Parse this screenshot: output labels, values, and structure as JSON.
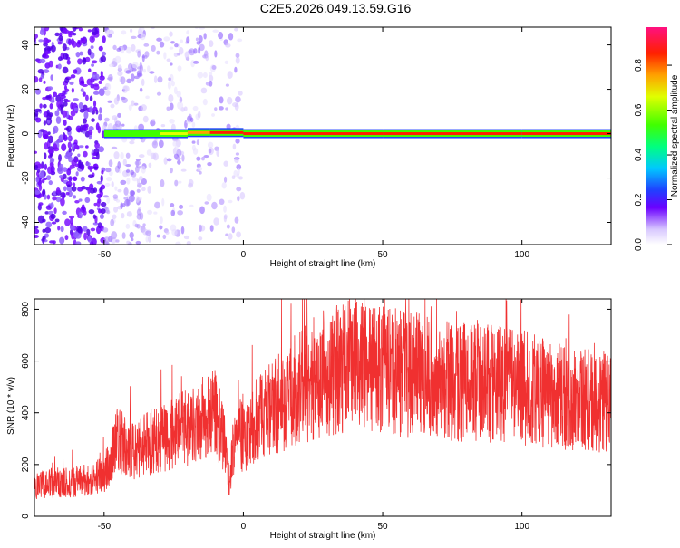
{
  "title": "C2E5.2026.049.13.59.G16",
  "chart_data": [
    {
      "type": "heatmap",
      "xlabel": "Height of straight line (km)",
      "ylabel": "Frequency (Hz)",
      "xlim": [
        -75,
        132
      ],
      "ylim": [
        -50,
        48
      ],
      "x_ticks": [
        -50,
        0,
        50,
        100
      ],
      "y_ticks": [
        -40,
        -20,
        0,
        20,
        40
      ],
      "colorbar": {
        "label": "Normalized spectral amplitude",
        "range": [
          0,
          0.97
        ],
        "ticks": [
          0.0,
          0.2,
          0.4,
          0.6,
          0.8
        ],
        "tick_labels": [
          "0.0",
          "0.2",
          "0.4",
          "0.6",
          "0.8"
        ]
      },
      "ridge": [
        {
          "x": -50,
          "freq": 0,
          "amp": 0.35
        },
        {
          "x": -40,
          "freq": 0,
          "amp": 0.45
        },
        {
          "x": -30,
          "freq": 0,
          "amp": 0.5
        },
        {
          "x": -20,
          "freq": 0,
          "amp": 0.7
        },
        {
          "x": -12,
          "freq": 1,
          "amp": 0.85
        },
        {
          "x": 0,
          "freq": 0,
          "amp": 0.9
        },
        {
          "x": 50,
          "freq": 0,
          "amp": 0.95
        },
        {
          "x": 100,
          "freq": 0,
          "amp": 0.95
        },
        {
          "x": 132,
          "freq": 0,
          "amp": 0.95
        }
      ]
    },
    {
      "type": "line",
      "xlabel": "Height of straight line (km)",
      "ylabel": "SNR (10 * v/v)",
      "xlim": [
        -75,
        132
      ],
      "ylim": [
        0,
        840
      ],
      "x_ticks": [
        -50,
        0,
        50,
        100
      ],
      "y_ticks": [
        0,
        200,
        400,
        600,
        800
      ],
      "line_color": "#f03030",
      "series": [
        {
          "x": [
            -75,
            -65,
            -55,
            -50,
            -45,
            -40,
            -35,
            -30,
            -25,
            -20,
            -15,
            -10,
            -7,
            -5,
            -3,
            0,
            5,
            10,
            20,
            30,
            40,
            50,
            60,
            70,
            80,
            90,
            100,
            110,
            120,
            132
          ],
          "y": [
            120,
            130,
            140,
            160,
            300,
            250,
            280,
            300,
            320,
            340,
            350,
            400,
            300,
            120,
            350,
            300,
            380,
            420,
            500,
            560,
            580,
            560,
            550,
            520,
            520,
            510,
            500,
            470,
            450,
            440
          ]
        }
      ]
    }
  ]
}
